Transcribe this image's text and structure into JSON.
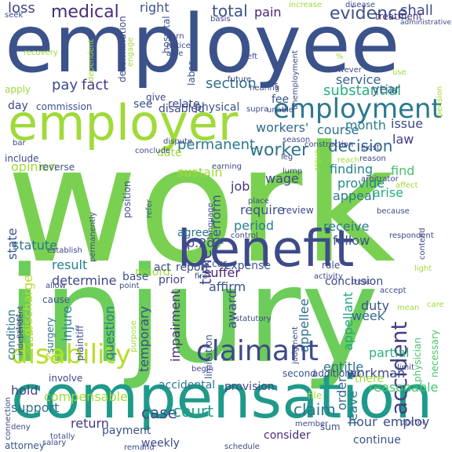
{
  "palette": {
    "purple": "#46327e",
    "indigo": "#365c8d",
    "blue": "#277f8e",
    "teal": "#1fa187",
    "green": "#4ac16d",
    "lime": "#a0da39",
    "yellow": "#c8e020"
  },
  "words": [
    {
      "text": "work",
      "color": "#7ad151"
    },
    {
      "text": "injury",
      "color": "#6ccd5a"
    },
    {
      "text": "employee",
      "color": "#3b528b"
    },
    {
      "text": "employer",
      "color": "#a0da39"
    },
    {
      "text": "compensation",
      "color": "#1f9a8a"
    },
    {
      "text": "benefit",
      "color": "#3e4a89"
    },
    {
      "text": "employment",
      "color": "#2a788e"
    },
    {
      "text": "claimant",
      "color": "#3e4989"
    },
    {
      "text": "disability",
      "color": "#b5de2b"
    },
    {
      "text": "medical",
      "color": "#472d7b"
    },
    {
      "text": "evidence",
      "color": "#3b528b"
    },
    {
      "text": "decision",
      "color": "#31688e"
    },
    {
      "text": "worker",
      "color": "#2c738e"
    },
    {
      "text": "accident",
      "color": "#433e85"
    },
    {
      "text": "finding",
      "color": "#26828e"
    },
    {
      "text": "permanent",
      "color": "#2a788e"
    },
    {
      "text": "section",
      "color": "#2d708e"
    },
    {
      "text": "substantial",
      "color": "#27ad81"
    },
    {
      "text": "service",
      "color": "#35608d"
    },
    {
      "text": "total",
      "color": "#3b528b"
    },
    {
      "text": "pay",
      "color": "#3e4989"
    },
    {
      "text": "fact",
      "color": "#443a83"
    },
    {
      "text": "pain",
      "color": "#482475"
    },
    {
      "text": "right",
      "color": "#3b528b"
    },
    {
      "text": "loss",
      "color": "#404688"
    },
    {
      "text": "shall",
      "color": "#3e4989"
    },
    {
      "text": "treatment",
      "color": "#472c7a"
    },
    {
      "text": "course",
      "color": "#2c728e"
    },
    {
      "text": "workers'",
      "color": "#31688e"
    },
    {
      "text": "provide",
      "color": "#23898e"
    },
    {
      "text": "appeal",
      "color": "#287c8e"
    },
    {
      "text": "receive",
      "color": "#2a788e"
    },
    {
      "text": "follow",
      "color": "#3b528b"
    },
    {
      "text": "law",
      "color": "#443983"
    },
    {
      "text": "find",
      "color": "#4ac16d"
    },
    {
      "text": "arise",
      "color": "#27ad81"
    },
    {
      "text": "wage",
      "color": "#414487"
    },
    {
      "text": "require",
      "color": "#3b528b"
    },
    {
      "text": "period",
      "color": "#277f8e"
    },
    {
      "text": "job",
      "color": "#453781"
    },
    {
      "text": "perform",
      "color": "#38588c"
    },
    {
      "text": "time",
      "color": "#3e4989"
    },
    {
      "text": "sustain",
      "color": "#a0da39"
    },
    {
      "text": "statute",
      "color": "#2a788e"
    },
    {
      "text": "result",
      "color": "#277f8e"
    },
    {
      "text": "determine",
      "color": "#404688"
    },
    {
      "text": "p.2d",
      "color": "#3e4a89"
    },
    {
      "text": "suffer",
      "color": "#482576"
    },
    {
      "text": "affirm",
      "color": "#3b528b"
    },
    {
      "text": "award",
      "color": "#3e4989"
    },
    {
      "text": "opinion",
      "color": "#a0da39"
    },
    {
      "text": "state",
      "color": "#3b528b"
    },
    {
      "text": "discharge",
      "color": "#b8de29"
    },
    {
      "text": "condition",
      "color": "#2c728e"
    },
    {
      "text": "injure",
      "color": "#26828e"
    },
    {
      "text": "question",
      "color": "#2a788e"
    },
    {
      "text": "temporary",
      "color": "#3e4989"
    },
    {
      "text": "impairment",
      "color": "#472d7b"
    },
    {
      "text": "appellee",
      "color": "#2e6e8e"
    },
    {
      "text": "appellant",
      "color": "#22a884"
    },
    {
      "text": "week",
      "color": "#31688e"
    },
    {
      "text": "duty",
      "color": "#3b528b"
    },
    {
      "text": "workman",
      "color": "#3e4989"
    },
    {
      "text": "partial",
      "color": "#2fb47c"
    },
    {
      "text": "entitle",
      "color": "#2c728e"
    },
    {
      "text": "leave",
      "color": "#287c8e"
    },
    {
      "text": "reasonable",
      "color": "#4ac16d"
    },
    {
      "text": "order",
      "color": "#31688e"
    },
    {
      "text": "there",
      "color": "#9bd93c"
    },
    {
      "text": "hold",
      "color": "#414487"
    },
    {
      "text": "compensable",
      "color": "#a0da39"
    },
    {
      "text": "accidental",
      "color": "#2a788e"
    },
    {
      "text": "provision",
      "color": "#3e4a89"
    },
    {
      "text": "support",
      "color": "#2c728e"
    },
    {
      "text": "return",
      "color": "#443983"
    },
    {
      "text": "payment",
      "color": "#3b528b"
    },
    {
      "text": "weekly",
      "color": "#3e4989"
    },
    {
      "text": "case",
      "color": "#3e4989"
    },
    {
      "text": "court",
      "color": "#1fa187"
    },
    {
      "text": "claim",
      "color": "#2a788e"
    },
    {
      "text": "hour",
      "color": "#3b528b"
    },
    {
      "text": "employ",
      "color": "#3e4989"
    },
    {
      "text": "consider",
      "color": "#472d7b"
    },
    {
      "text": "continue",
      "color": "#3b528b"
    },
    {
      "text": "conclusion",
      "color": "#3e4989"
    },
    {
      "text": "expense",
      "color": "#3b528b"
    },
    {
      "text": "report",
      "color": "#3e4989"
    },
    {
      "text": "record",
      "color": "#a0da39"
    },
    {
      "text": "act",
      "color": "#3e4989"
    },
    {
      "text": "base",
      "color": "#3b528b"
    },
    {
      "text": "prior",
      "color": "#414487"
    },
    {
      "text": "agree",
      "color": "#2c728e"
    },
    {
      "text": "see",
      "color": "#3b528b"
    },
    {
      "text": "relate",
      "color": "#3e4989"
    },
    {
      "text": "fee",
      "color": "#3b528b"
    },
    {
      "text": "month",
      "color": "#277f8e"
    },
    {
      "text": "issue",
      "color": "#3e4989"
    },
    {
      "text": "year",
      "color": "#3b528b"
    },
    {
      "text": "day",
      "color": "#3e4989"
    },
    {
      "text": "commission",
      "color": "#3b528b"
    },
    {
      "text": "give",
      "color": "#3e4989"
    },
    {
      "text": "disabled",
      "color": "#3e4989"
    },
    {
      "text": "physical",
      "color": "#3b528b"
    },
    {
      "text": "include",
      "color": "#3e4989"
    },
    {
      "text": "reverse",
      "color": "#3b528b"
    },
    {
      "text": "date",
      "color": "#a0da39"
    },
    {
      "text": "rule",
      "color": "#3e4989"
    },
    {
      "text": "occur",
      "color": "#3b528b"
    },
    {
      "text": "review",
      "color": "#3e4989"
    },
    {
      "text": "apply",
      "color": "#a0da39"
    },
    {
      "text": "say",
      "color": "#b5de2b"
    },
    {
      "text": "surgery",
      "color": "#2c728e"
    },
    {
      "text": "death",
      "color": "#a0da39"
    },
    {
      "text": "plaintiff",
      "color": "#3e4989"
    },
    {
      "text": "limitation",
      "color": "#3b528b"
    },
    {
      "text": "second",
      "color": "#3b528b"
    },
    {
      "text": "additional",
      "color": "#3e4989"
    },
    {
      "text": "sum",
      "color": "#3b528b"
    },
    {
      "text": "file",
      "color": "#a0da39"
    },
    {
      "text": "physician",
      "color": "#4ac16d"
    },
    {
      "text": "necessary",
      "color": "#4ac16d"
    },
    {
      "text": "attorney",
      "color": "#3b528b"
    },
    {
      "text": "salary",
      "color": "#3e4989"
    },
    {
      "text": "totally",
      "color": "#3b528b"
    },
    {
      "text": "schedule",
      "color": "#3e4989"
    },
    {
      "text": "purpose",
      "color": "#a0da39"
    },
    {
      "text": "cause",
      "color": "#3b528b"
    },
    {
      "text": "involve",
      "color": "#3e4989"
    },
    {
      "text": "position",
      "color": "#3e4989"
    },
    {
      "text": "refer",
      "color": "#3b528b"
    },
    {
      "text": "determination",
      "color": "#3e4989"
    },
    {
      "text": "hospital",
      "color": "#3b528b"
    },
    {
      "text": "labor",
      "color": "#3b528b"
    },
    {
      "text": "earn",
      "color": "#3e4989"
    },
    {
      "text": "notice",
      "color": "#3e4989"
    },
    {
      "text": "able",
      "color": "#3e4989"
    },
    {
      "text": "basis",
      "color": "#3e4989"
    },
    {
      "text": "increase",
      "color": "#a0da39"
    },
    {
      "text": "disease",
      "color": "#3e4989"
    },
    {
      "text": "administrative",
      "color": "#3e4989"
    },
    {
      "text": "seek",
      "color": "#3e4989"
    },
    {
      "text": "recovery",
      "color": "#a0da39"
    },
    {
      "text": "dependent",
      "color": "#a0da39"
    },
    {
      "text": "engage",
      "color": "#a0da39"
    },
    {
      "text": "future",
      "color": "#3e4989"
    },
    {
      "text": "unemployment",
      "color": "#3e4989"
    },
    {
      "text": "left",
      "color": "#3e4989"
    },
    {
      "text": "however",
      "color": "#3e4989"
    },
    {
      "text": "pension",
      "color": "#a0da39"
    },
    {
      "text": "hearing",
      "color": "#3e4989"
    },
    {
      "text": "unable",
      "color": "#3e4989"
    },
    {
      "text": "supra",
      "color": "#3e4989"
    },
    {
      "text": "exist",
      "color": "#3e4989"
    },
    {
      "text": "construction",
      "color": "#3e4989"
    },
    {
      "text": "reason",
      "color": "#3e4989"
    },
    {
      "text": "reach",
      "color": "#a0da39"
    },
    {
      "text": "conclude",
      "color": "#3e4989"
    },
    {
      "text": "earning",
      "color": "#3e4989"
    },
    {
      "text": "dispute",
      "color": "#3e4989"
    },
    {
      "text": "lump",
      "color": "#3e4989"
    },
    {
      "text": "arbitrator",
      "color": "#3e4989"
    },
    {
      "text": "affect",
      "color": "#a0da39"
    },
    {
      "text": "because",
      "color": "#3e4989"
    },
    {
      "text": "language",
      "color": "#3e4989"
    },
    {
      "text": "place",
      "color": "#3e4989"
    },
    {
      "text": "permanently",
      "color": "#3e4989"
    },
    {
      "text": "control",
      "color": "#3e4989"
    },
    {
      "text": "respondent",
      "color": "#3e4989"
    },
    {
      "text": "light",
      "color": "#a0da39"
    },
    {
      "text": "contend",
      "color": "#3e4989"
    },
    {
      "text": "establish",
      "color": "#3e4989"
    },
    {
      "text": "point",
      "color": "#3e4989"
    },
    {
      "text": "allow",
      "color": "#3e4989"
    },
    {
      "text": "independent",
      "color": "#3e4989"
    },
    {
      "text": "activity",
      "color": "#3e4989"
    },
    {
      "text": "treat",
      "color": "#3e4989"
    },
    {
      "text": "accept",
      "color": "#3e4989"
    },
    {
      "text": "statutory",
      "color": "#3e4989"
    },
    {
      "text": "judgment",
      "color": "#3e4989"
    },
    {
      "text": "mean",
      "color": "#a0da39"
    },
    {
      "text": "care",
      "color": "#a0da39"
    },
    {
      "text": "limit",
      "color": "#3e4989"
    },
    {
      "text": "begin",
      "color": "#3e4989"
    },
    {
      "text": "extent",
      "color": "#3e4989"
    },
    {
      "text": "connection",
      "color": "#3e4989"
    },
    {
      "text": "deny",
      "color": "#3e4989"
    },
    {
      "text": "member",
      "color": "#3e4989"
    },
    {
      "text": "doctor",
      "color": "#3e4989"
    },
    {
      "text": "remand",
      "color": "#3e4989"
    },
    {
      "text": "bar",
      "color": "#3e4989"
    },
    {
      "text": "season",
      "color": "#3e4989"
    },
    {
      "text": "leg",
      "color": "#3e4989"
    },
    {
      "text": "argue",
      "color": "#a0da39"
    },
    {
      "text": "fire",
      "color": "#3e4989"
    },
    {
      "text": "%",
      "color": "#a0da39"
    },
    {
      "text": "§",
      "color": "#3e4989"
    },
    {
      "text": "use",
      "color": "#a0da39"
    }
  ]
}
